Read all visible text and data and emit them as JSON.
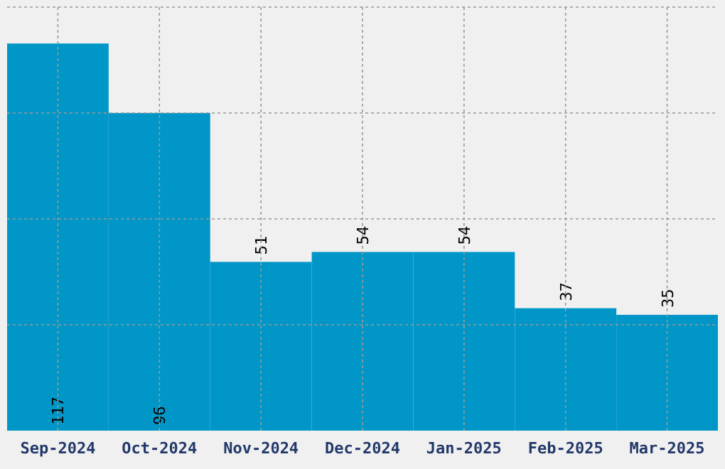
{
  "chart_data": {
    "type": "bar",
    "categories": [
      "Sep-2024",
      "Oct-2024",
      "Nov-2024",
      "Dec-2024",
      "Jan-2025",
      "Feb-2025",
      "Mar-2025"
    ],
    "values": [
      117,
      96,
      51,
      54,
      54,
      37,
      35
    ],
    "color": "#0097c8",
    "ylim": [
      0,
      128
    ],
    "yticks": [
      {
        "value": 32,
        "label": null
      },
      {
        "value": 64,
        "label": null
      },
      {
        "value": 96,
        "label": null
      },
      {
        "value": 128,
        "label": null
      }
    ],
    "tick_labels": "x",
    "grid": true,
    "data_labels": true
  }
}
